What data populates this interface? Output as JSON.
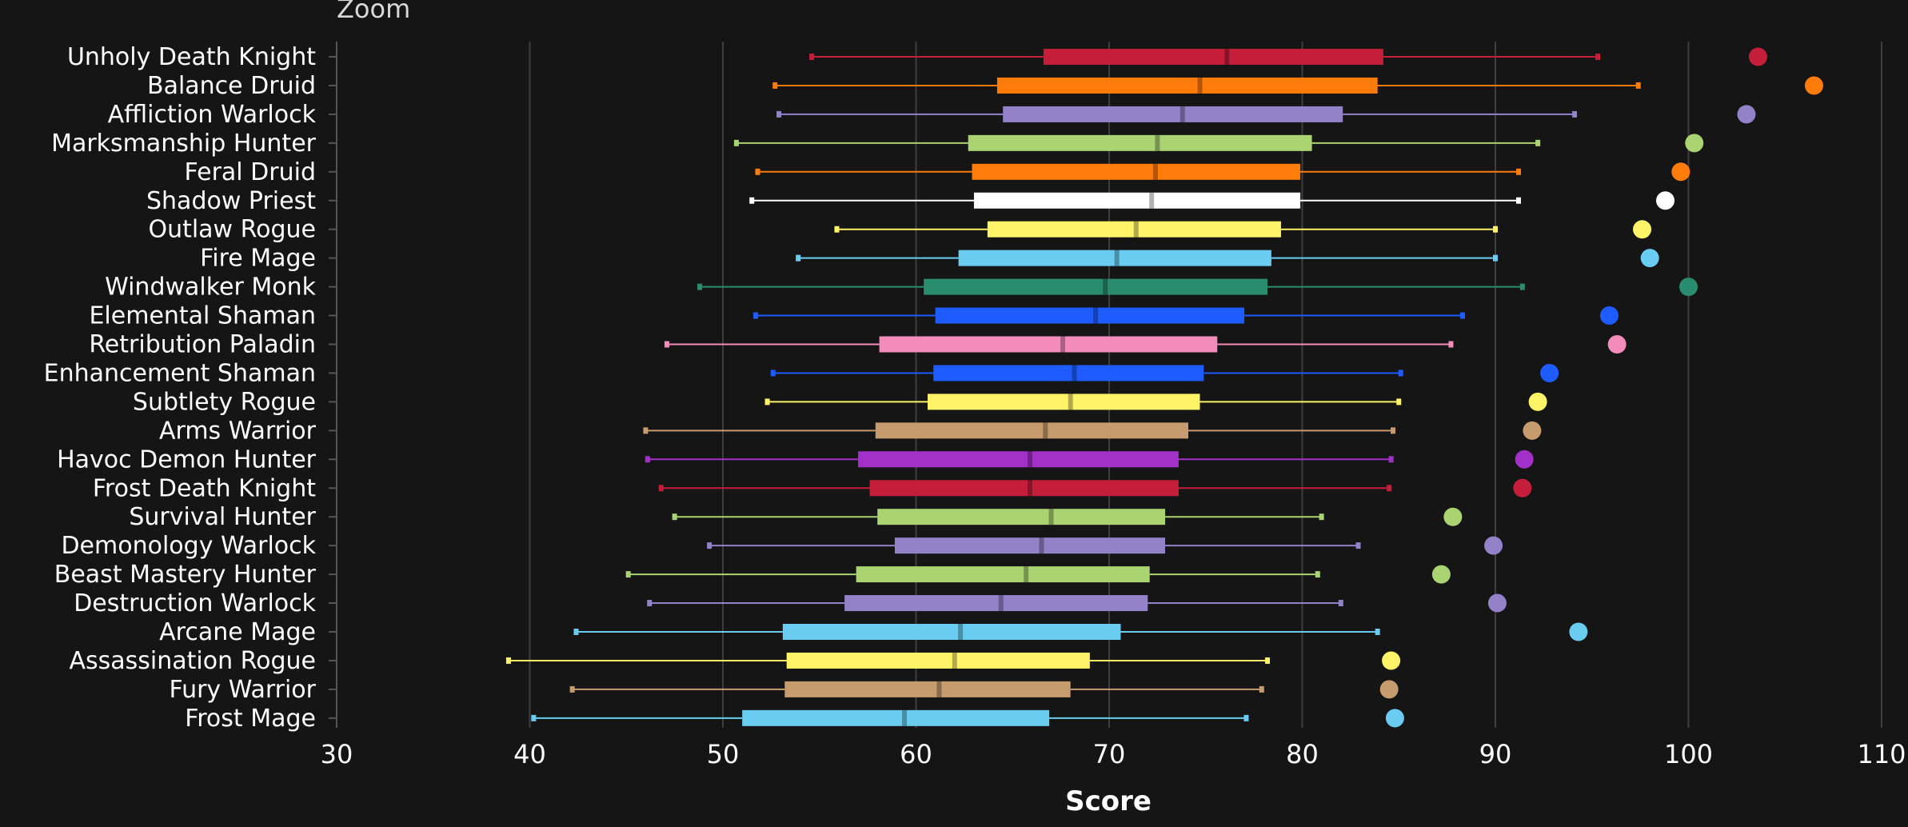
{
  "zoom_label": "Zoom",
  "chart_data": {
    "type": "boxplot",
    "orientation": "horizontal",
    "xlabel": "Score",
    "xlim": [
      30,
      110
    ],
    "xticks": [
      30,
      40,
      50,
      60,
      70,
      80,
      90,
      100,
      110
    ],
    "grid": true,
    "categories": [
      {
        "name": "Unholy Death Knight",
        "color": "#C41E3A",
        "min": 54.6,
        "q1": 66.6,
        "median": 76.1,
        "q3": 84.2,
        "max": 95.3,
        "point": 103.6
      },
      {
        "name": "Balance Druid",
        "color": "#FF7C0A",
        "min": 52.7,
        "q1": 64.2,
        "median": 74.7,
        "q3": 83.9,
        "max": 97.4,
        "point": 106.5
      },
      {
        "name": "Affliction Warlock",
        "color": "#9482C9",
        "min": 52.9,
        "q1": 64.5,
        "median": 73.8,
        "q3": 82.1,
        "max": 94.1,
        "point": 103.0
      },
      {
        "name": "Marksmanship Hunter",
        "color": "#AAD372",
        "min": 50.7,
        "q1": 62.7,
        "median": 72.5,
        "q3": 80.5,
        "max": 92.2,
        "point": 100.3
      },
      {
        "name": "Feral Druid",
        "color": "#FF7C0A",
        "min": 51.8,
        "q1": 62.9,
        "median": 72.4,
        "q3": 79.9,
        "max": 91.2,
        "point": 99.6
      },
      {
        "name": "Shadow Priest",
        "color": "#FFFFFF",
        "min": 51.5,
        "q1": 63.0,
        "median": 72.2,
        "q3": 79.9,
        "max": 91.2,
        "point": 98.8
      },
      {
        "name": "Outlaw Rogue",
        "color": "#FFF468",
        "min": 55.9,
        "q1": 63.7,
        "median": 71.4,
        "q3": 78.9,
        "max": 90.0,
        "point": 97.6
      },
      {
        "name": "Fire Mage",
        "color": "#69CCF0",
        "min": 53.9,
        "q1": 62.2,
        "median": 70.4,
        "q3": 78.4,
        "max": 90.0,
        "point": 98.0
      },
      {
        "name": "Windwalker Monk",
        "color": "#2A8C6E",
        "min": 48.8,
        "q1": 60.4,
        "median": 69.8,
        "q3": 78.2,
        "max": 91.4,
        "point": 100.0
      },
      {
        "name": "Elemental Shaman",
        "color": "#1F5CFF",
        "min": 51.7,
        "q1": 61.0,
        "median": 69.3,
        "q3": 77.0,
        "max": 88.3,
        "point": 95.9
      },
      {
        "name": "Retribution Paladin",
        "color": "#F48CBA",
        "min": 47.1,
        "q1": 58.1,
        "median": 67.6,
        "q3": 75.6,
        "max": 87.7,
        "point": 96.3
      },
      {
        "name": "Enhancement Shaman",
        "color": "#1F5CFF",
        "min": 52.6,
        "q1": 60.9,
        "median": 68.2,
        "q3": 74.9,
        "max": 85.1,
        "point": 92.8
      },
      {
        "name": "Subtlety Rogue",
        "color": "#FFF468",
        "min": 52.3,
        "q1": 60.6,
        "median": 68.0,
        "q3": 74.7,
        "max": 85.0,
        "point": 92.2
      },
      {
        "name": "Arms Warrior",
        "color": "#C69B6D",
        "min": 46.0,
        "q1": 57.9,
        "median": 66.7,
        "q3": 74.1,
        "max": 84.7,
        "point": 91.9
      },
      {
        "name": "Havoc Demon Hunter",
        "color": "#A330C9",
        "min": 46.1,
        "q1": 57.0,
        "median": 65.9,
        "q3": 73.6,
        "max": 84.6,
        "point": 91.5
      },
      {
        "name": "Frost Death Knight",
        "color": "#C41E3A",
        "min": 46.8,
        "q1": 57.6,
        "median": 65.9,
        "q3": 73.6,
        "max": 84.5,
        "point": 91.4
      },
      {
        "name": "Survival Hunter",
        "color": "#AAD372",
        "min": 47.5,
        "q1": 58.0,
        "median": 67.0,
        "q3": 72.9,
        "max": 81.0,
        "point": 87.8
      },
      {
        "name": "Demonology Warlock",
        "color": "#9482C9",
        "min": 49.3,
        "q1": 58.9,
        "median": 66.5,
        "q3": 72.9,
        "max": 82.9,
        "point": 89.9
      },
      {
        "name": "Beast Mastery Hunter",
        "color": "#AAD372",
        "min": 45.1,
        "q1": 56.9,
        "median": 65.7,
        "q3": 72.1,
        "max": 80.8,
        "point": 87.2
      },
      {
        "name": "Destruction Warlock",
        "color": "#9482C9",
        "min": 46.2,
        "q1": 56.3,
        "median": 64.4,
        "q3": 72.0,
        "max": 82.0,
        "point": 90.1
      },
      {
        "name": "Arcane Mage",
        "color": "#69CCF0",
        "min": 42.4,
        "q1": 53.1,
        "median": 62.3,
        "q3": 70.6,
        "max": 83.9,
        "point": 94.3
      },
      {
        "name": "Assassination Rogue",
        "color": "#FFF468",
        "min": 38.9,
        "q1": 53.3,
        "median": 62.0,
        "q3": 69.0,
        "max": 78.2,
        "point": 84.6
      },
      {
        "name": "Fury Warrior",
        "color": "#C69B6D",
        "min": 42.2,
        "q1": 53.2,
        "median": 61.2,
        "q3": 68.0,
        "max": 77.9,
        "point": 84.5
      },
      {
        "name": "Frost Mage",
        "color": "#69CCF0",
        "min": 40.2,
        "q1": 51.0,
        "median": 59.4,
        "q3": 66.9,
        "max": 77.1,
        "point": 84.8
      }
    ]
  }
}
